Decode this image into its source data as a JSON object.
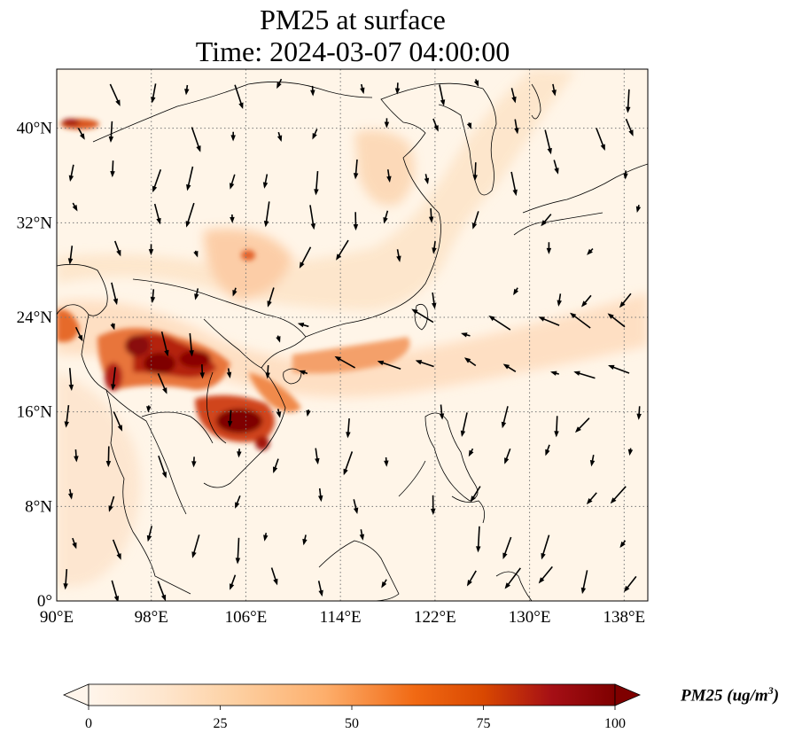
{
  "title_line1": "PM25 at surface",
  "title_line2": "Time: 2024-03-07 04:00:00",
  "map": {
    "lon_range": [
      90,
      140
    ],
    "lat_range": [
      0,
      45
    ],
    "lon_ticks": [
      {
        "value": 90,
        "label": "90°E"
      },
      {
        "value": 98,
        "label": "98°E"
      },
      {
        "value": 106,
        "label": "106°E"
      },
      {
        "value": 114,
        "label": "114°E"
      },
      {
        "value": 122,
        "label": "122°E"
      },
      {
        "value": 130,
        "label": "130°E"
      },
      {
        "value": 138,
        "label": "138°E"
      }
    ],
    "lat_ticks": [
      {
        "value": 0,
        "label": "0°"
      },
      {
        "value": 8,
        "label": "8°N"
      },
      {
        "value": 16,
        "label": "16°N"
      },
      {
        "value": 24,
        "label": "24°N"
      },
      {
        "value": 32,
        "label": "32°N"
      },
      {
        "value": 40,
        "label": "40°N"
      }
    ],
    "grid": true,
    "colors": {
      "background": "#fff5e8",
      "coast": "#000000",
      "grid": "#777777"
    }
  },
  "colorbar": {
    "min": 0,
    "max": 100,
    "ticks": [
      0,
      25,
      50,
      75,
      100
    ],
    "label_main": "PM25 (ug/m",
    "label_sup": "3",
    "label_end": ")",
    "extend": "both",
    "colors": [
      "#fff5eb",
      "#fee6ce",
      "#fdd0a2",
      "#fdae6b",
      "#f16913",
      "#d94801",
      "#a50f15",
      "#7f0000"
    ]
  }
}
